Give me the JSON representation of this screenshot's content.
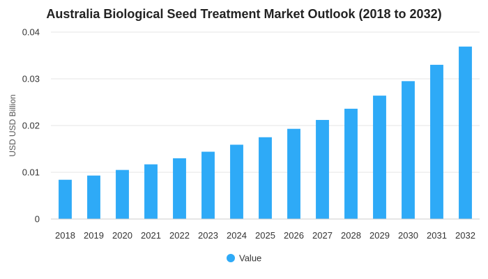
{
  "chart_data": {
    "type": "bar",
    "title": "Australia Biological Seed Treatment Market Outlook (2018 to 2032)",
    "xlabel": "",
    "ylabel": "USD USD Billion",
    "ylim": [
      0,
      0.04
    ],
    "yticks": [
      0,
      0.01,
      0.02,
      0.03,
      0.04
    ],
    "ytick_labels": [
      "0",
      "0.01",
      "0.02",
      "0.03",
      "0.04"
    ],
    "grid": true,
    "legend_position": "bottom-center",
    "bar_color": "#2eaaf7",
    "categories": [
      "2018",
      "2019",
      "2020",
      "2021",
      "2022",
      "2023",
      "2024",
      "2025",
      "2026",
      "2027",
      "2028",
      "2029",
      "2030",
      "2031",
      "2032"
    ],
    "series": [
      {
        "name": "Value",
        "values": [
          0.0084,
          0.0093,
          0.0105,
          0.0117,
          0.013,
          0.0144,
          0.0159,
          0.0175,
          0.0193,
          0.0212,
          0.0236,
          0.0264,
          0.0295,
          0.033,
          0.0369
        ]
      }
    ]
  }
}
